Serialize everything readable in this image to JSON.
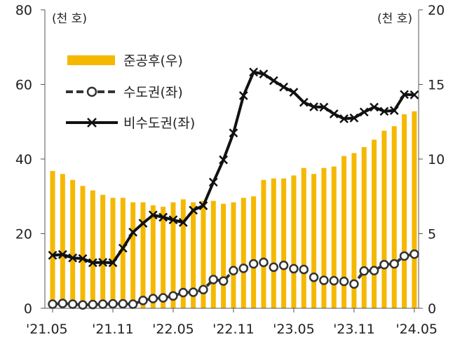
{
  "chart_data": {
    "type": "bar+line",
    "x_tick_labels": [
      "'21.05",
      "'21.11",
      "'22.05",
      "'22.11",
      "'23.05",
      "'23.11",
      "'24.05"
    ],
    "x": [
      "'21.05",
      "'21.06",
      "'21.07",
      "'21.08",
      "'21.09",
      "'21.10",
      "'21.11",
      "'21.12",
      "'22.01",
      "'22.02",
      "'22.03",
      "'22.04",
      "'22.05",
      "'22.06",
      "'22.07",
      "'22.08",
      "'22.09",
      "'22.10",
      "'22.11",
      "'22.12",
      "'23.01",
      "'23.02",
      "'23.03",
      "'23.04",
      "'23.05",
      "'23.06",
      "'23.07",
      "'23.08",
      "'23.09",
      "'23.10",
      "'23.11",
      "'23.12",
      "'24.01",
      "'24.02",
      "'24.03",
      "'24.04",
      "'24.05"
    ],
    "left_axis": {
      "unit_label": "(천 호)",
      "ylim": [
        0,
        80
      ],
      "ticks": [
        0,
        20,
        40,
        60,
        80
      ]
    },
    "right_axis": {
      "unit_label": "(천 호)",
      "ylim": [
        0,
        20
      ],
      "ticks": [
        0,
        5,
        10,
        15,
        20
      ]
    },
    "series": [
      {
        "name": "준공후(우)",
        "kind": "bar",
        "axis": "right",
        "color": "#F5B800",
        "values": [
          9.2,
          9.0,
          8.6,
          8.2,
          7.9,
          7.6,
          7.4,
          7.4,
          7.1,
          7.1,
          6.9,
          6.8,
          7.1,
          7.3,
          7.1,
          7.2,
          7.2,
          7.0,
          7.1,
          7.4,
          7.5,
          8.6,
          8.7,
          8.7,
          8.9,
          9.4,
          9.0,
          9.4,
          9.5,
          10.2,
          10.4,
          10.8,
          11.3,
          11.9,
          12.2,
          13.0,
          13.2
        ]
      },
      {
        "name": "수도권(좌)",
        "kind": "line",
        "axis": "left",
        "color": "#333333",
        "values": [
          1.1,
          1.3,
          1.1,
          0.9,
          1.0,
          1.1,
          1.2,
          1.2,
          1.1,
          2.1,
          2.6,
          2.8,
          3.3,
          4.2,
          4.3,
          5.0,
          7.7,
          7.3,
          10.1,
          10.7,
          11.9,
          12.3,
          11.0,
          11.5,
          10.6,
          10.4,
          8.3,
          7.5,
          7.4,
          7.2,
          6.5,
          10.0,
          10.1,
          11.7,
          11.9,
          14.0,
          14.5
        ]
      },
      {
        "name": "비수도권(좌)",
        "kind": "line",
        "axis": "left",
        "color": "#111111",
        "values": [
          14.2,
          14.4,
          13.5,
          13.3,
          12.2,
          12.3,
          12.2,
          16.1,
          20.4,
          22.8,
          25.0,
          24.4,
          23.7,
          23.0,
          26.3,
          27.5,
          33.8,
          39.8,
          47.0,
          57.0,
          63.3,
          62.8,
          61.0,
          59.3,
          57.9,
          55.2,
          54.0,
          53.9,
          52.1,
          50.8,
          51.0,
          52.6,
          53.9,
          52.8,
          53.0,
          57.3,
          57.2
        ]
      }
    ]
  }
}
